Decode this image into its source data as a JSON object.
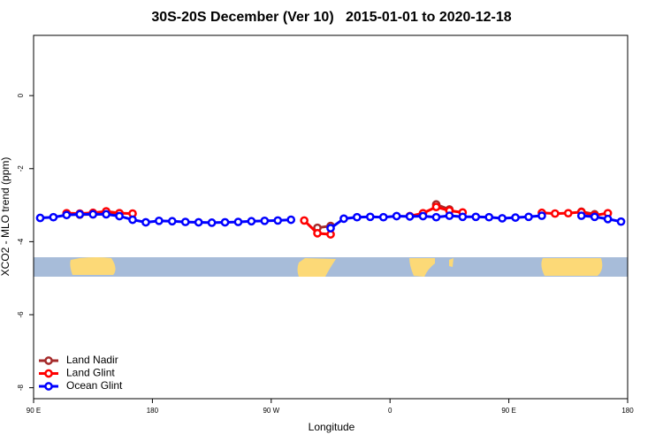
{
  "chart_data": {
    "type": "line",
    "title": "30S-20S December (Ver 10)   2015-01-01 to 2020-12-18",
    "x_label": "Longitude",
    "y_label": "XCO2 - MLO trend (ppm)",
    "x": [
      95,
      105,
      115,
      125,
      135,
      145,
      155,
      165,
      175,
      185,
      195,
      205,
      215,
      225,
      235,
      245,
      255,
      265,
      275,
      285,
      295,
      305,
      315,
      325,
      335,
      345,
      355,
      365,
      375,
      385,
      395,
      405,
      415,
      425,
      435,
      445,
      455,
      465,
      475,
      485,
      495,
      505,
      515,
      525,
      535
    ],
    "series": [
      {
        "name": "Land Nadir",
        "color": "#a52a2a",
        "values": [
          null,
          null,
          -3.25,
          -3.26,
          -3.25,
          -3.24,
          -3.22,
          null,
          null,
          null,
          null,
          null,
          null,
          null,
          null,
          null,
          null,
          null,
          null,
          null,
          null,
          -3.62,
          -3.57,
          null,
          null,
          null,
          null,
          null,
          null,
          null,
          -2.98,
          -3.12,
          null,
          null,
          null,
          null,
          null,
          null,
          null,
          null,
          null,
          -3.18,
          -3.25,
          null,
          null
        ]
      },
      {
        "name": "Land Glint",
        "color": "#ff0000",
        "values": [
          null,
          null,
          -3.22,
          -3.23,
          -3.21,
          -3.17,
          -3.22,
          -3.23,
          null,
          null,
          null,
          null,
          null,
          null,
          null,
          null,
          null,
          null,
          null,
          null,
          -3.42,
          -3.77,
          -3.8,
          null,
          null,
          null,
          null,
          null,
          -3.3,
          -3.22,
          -3.05,
          -3.15,
          -3.2,
          null,
          null,
          null,
          null,
          null,
          -3.21,
          -3.23,
          -3.22,
          -3.19,
          -3.28,
          -3.22,
          null
        ]
      },
      {
        "name": "Ocean Glint",
        "color": "#0000ff",
        "values": [
          -3.35,
          -3.33,
          -3.27,
          -3.25,
          -3.25,
          -3.25,
          -3.3,
          -3.4,
          -3.47,
          -3.43,
          -3.44,
          -3.46,
          -3.47,
          -3.48,
          -3.47,
          -3.46,
          -3.44,
          -3.43,
          -3.42,
          -3.4,
          null,
          null,
          -3.63,
          -3.37,
          -3.33,
          -3.32,
          -3.33,
          -3.3,
          -3.31,
          -3.3,
          -3.33,
          -3.29,
          -3.32,
          -3.32,
          -3.33,
          -3.36,
          -3.34,
          -3.32,
          -3.29,
          null,
          null,
          -3.29,
          -3.32,
          -3.38,
          -3.45
        ]
      }
    ],
    "xlim": [
      90,
      540
    ],
    "xticks": [
      {
        "value": 90,
        "label": "90 E"
      },
      {
        "value": 180,
        "label": "180"
      },
      {
        "value": 270,
        "label": "90 W"
      },
      {
        "value": 360,
        "label": "0"
      },
      {
        "value": 450,
        "label": "90 E"
      },
      {
        "value": 540,
        "label": "180"
      }
    ],
    "ylim": [
      -8.3,
      1.65
    ],
    "yticks": [
      0,
      -2,
      -4,
      -6,
      -8
    ],
    "legend": "bottom-left"
  }
}
